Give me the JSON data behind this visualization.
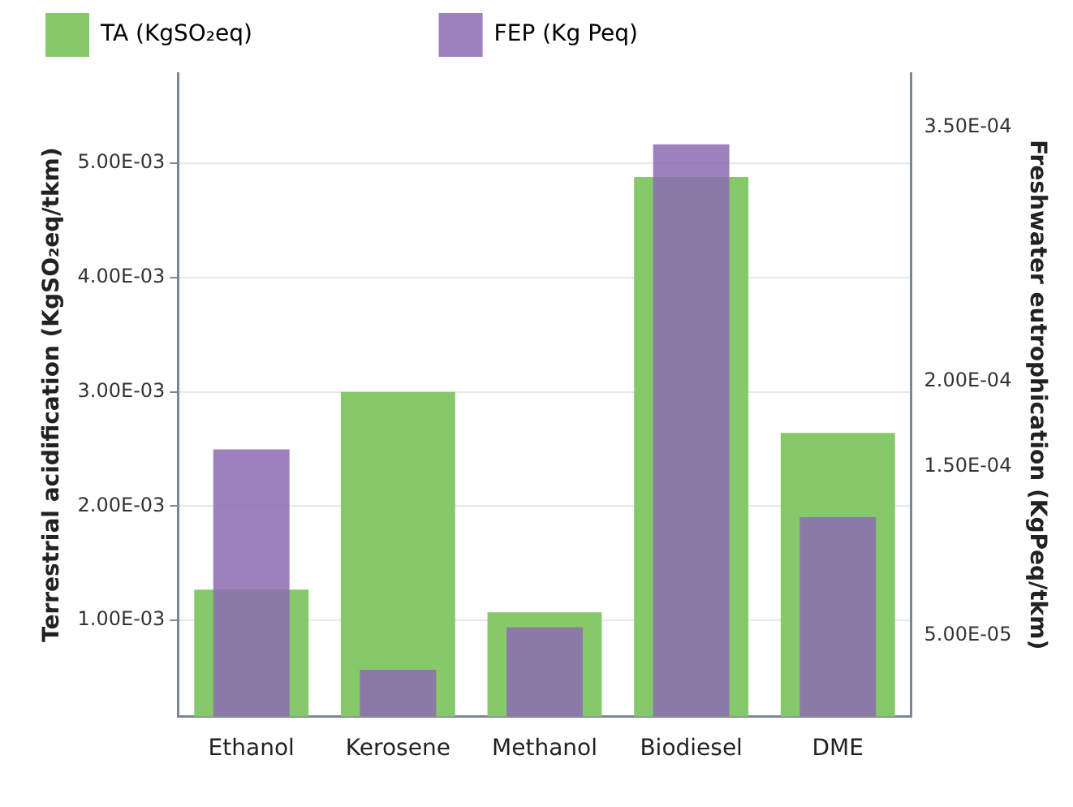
{
  "chart_data": {
    "type": "bar",
    "categories": [
      "Ethanol",
      "Kerosene",
      "Methanol",
      "Biodiesel",
      "DME"
    ],
    "series": [
      {
        "name": "TA (KgSO₂eq)",
        "color": "#86c96a",
        "values": [
          0.00127,
          0.003,
          0.00107,
          0.00488,
          0.00264
        ]
      },
      {
        "name": "FEP (Kg Peq)",
        "color": "#8c6bb1",
        "axis": "y2",
        "values": [
          0.00016,
          3e-05,
          5.5e-05,
          0.00034,
          0.00012
        ]
      }
    ],
    "ylabel": "Terrestrial acidification (KgSO₂eq/tkm)",
    "y2label": "Freshwater eutrophication (KgPeq/tkm)",
    "ylim": [
      0.00016,
      0.00579
    ],
    "yticks": [
      {
        "value": 0.001,
        "label": "1.00E-03"
      },
      {
        "value": 0.002,
        "label": "2.00E-03"
      },
      {
        "value": 0.003,
        "label": "3.00E-03"
      },
      {
        "value": 0.004,
        "label": "4.00E-03"
      },
      {
        "value": 0.005,
        "label": "5.00E-03"
      }
    ],
    "y2lim": [
      2.5e-06,
      0.000382
    ],
    "y2ticks": [
      {
        "value": 5e-05,
        "label": "5.00E-05"
      },
      {
        "value": 0.00015,
        "label": "1.50E-04"
      },
      {
        "value": 0.0002,
        "label": "2.00E-04"
      },
      {
        "value": 0.00035,
        "label": "3.50E-04"
      }
    ],
    "grid": "y",
    "legend": "top"
  }
}
